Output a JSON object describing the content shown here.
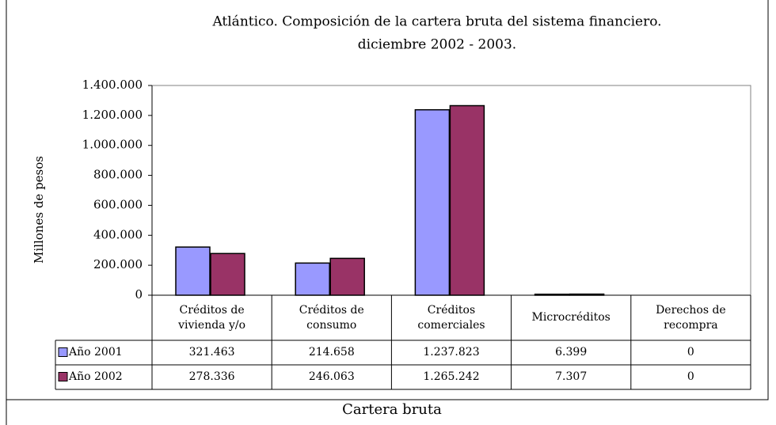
{
  "chart_data": {
    "type": "bar",
    "title": "Atlántico. Composición de la cartera bruta del sistema financiero.",
    "subtitle": "diciembre 2002 - 2003.",
    "x_label": "Cartera  bruta",
    "y_label": "Millones de pesos",
    "categories": [
      "Créditos de vivienda y/o",
      "Créditos de consumo",
      "Créditos comerciales",
      "Microcréditos",
      "Derechos de recompra"
    ],
    "series": [
      {
        "name": "Año 2001",
        "color": "#9999ff",
        "values": [
          321463,
          214658,
          1237823,
          6399,
          0
        ],
        "value_labels": [
          "321.463",
          "214.658",
          "1.237.823",
          "6.399",
          "0"
        ]
      },
      {
        "name": "Año 2002",
        "color": "#993366",
        "values": [
          278336,
          246063,
          1265242,
          7307,
          0
        ],
        "value_labels": [
          "278.336",
          "246.063",
          "1.265.242",
          "7.307",
          "0"
        ]
      }
    ],
    "ylim": [
      0,
      1400000
    ],
    "yticks": [
      0,
      {
        "value": 200000,
        "label": "200.000"
      },
      {
        "value": 400000,
        "label": "400.000"
      },
      {
        "value": 600000,
        "label": "600.000"
      },
      {
        "value": 800000,
        "label": "800.000"
      },
      {
        "value": 1000000,
        "label": "1.000.000"
      },
      {
        "value": 1200000,
        "label": "1.200.000"
      },
      {
        "value": 1400000,
        "label": "1.400.000"
      }
    ]
  }
}
